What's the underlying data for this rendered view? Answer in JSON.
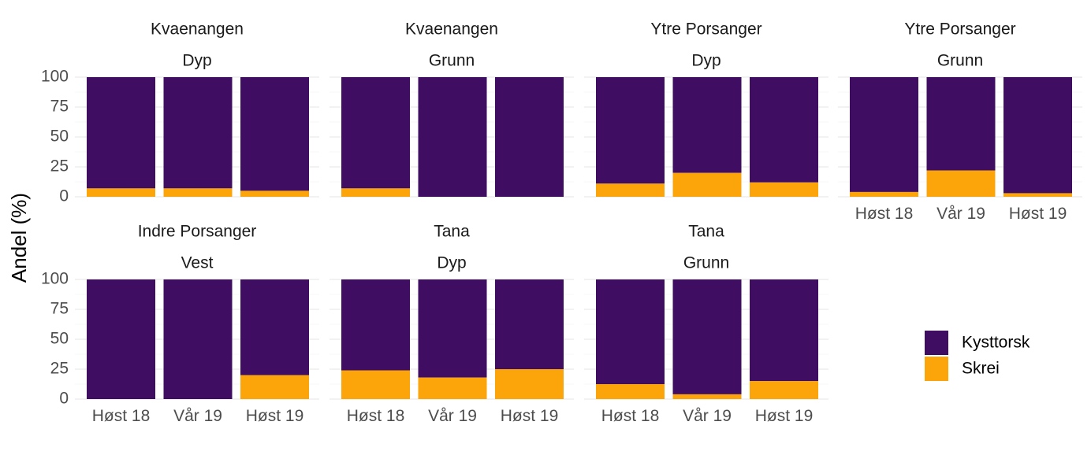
{
  "chart_data": {
    "type": "bar",
    "stacked": true,
    "ylabel": "Andel (%)",
    "xlabel": "",
    "ylim": [
      0,
      100
    ],
    "yticks": [
      0,
      25,
      50,
      75,
      100
    ],
    "categories": [
      "Høst 18",
      "Vår 19",
      "Høst 19"
    ],
    "legend": {
      "position": "right",
      "entries": [
        {
          "name": "Kysttorsk",
          "color": "#3f0d62"
        },
        {
          "name": "Skrei",
          "color": "#fca50a"
        }
      ]
    },
    "panels": [
      {
        "area": "Kvaenangen",
        "depth": "Dyp",
        "skrei": [
          7,
          7,
          5
        ],
        "kysttorsk": [
          93,
          93,
          95
        ]
      },
      {
        "area": "Kvaenangen",
        "depth": "Grunn",
        "skrei": [
          7,
          0,
          0
        ],
        "kysttorsk": [
          93,
          100,
          100
        ]
      },
      {
        "area": "Ytre Porsanger",
        "depth": "Dyp",
        "skrei": [
          11,
          20,
          12
        ],
        "kysttorsk": [
          89,
          80,
          88
        ]
      },
      {
        "area": "Ytre Porsanger",
        "depth": "Grunn",
        "skrei": [
          4,
          22,
          3
        ],
        "kysttorsk": [
          96,
          78,
          97
        ]
      },
      {
        "area": "Indre Porsanger",
        "depth": "Vest",
        "skrei": [
          0,
          0,
          20
        ],
        "kysttorsk": [
          100,
          100,
          80
        ]
      },
      {
        "area": "Tana",
        "depth": "Dyp",
        "skrei": [
          24,
          18,
          25
        ],
        "kysttorsk": [
          76,
          82,
          75
        ]
      },
      {
        "area": "Tana",
        "depth": "Grunn",
        "skrei": [
          12.5,
          4,
          15
        ],
        "kysttorsk": [
          87.5,
          96,
          85
        ]
      }
    ]
  }
}
